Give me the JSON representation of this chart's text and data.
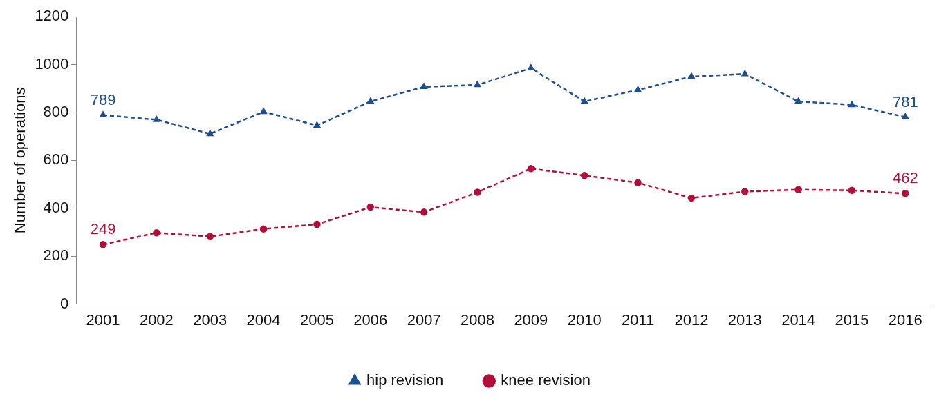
{
  "chart_data": {
    "type": "line",
    "ylabel": "Number of operations",
    "categories": [
      "2001",
      "2002",
      "2003",
      "2004",
      "2005",
      "2006",
      "2007",
      "2008",
      "2009",
      "2010",
      "2011",
      "2012",
      "2013",
      "2014",
      "2015",
      "2016"
    ],
    "series": [
      {
        "name": "hip revision",
        "color": "#1f4e8c",
        "marker": "triangle",
        "values": [
          789,
          770,
          711,
          803,
          746,
          846,
          907,
          915,
          985,
          846,
          894,
          950,
          961,
          846,
          832,
          781
        ],
        "value_labels": [
          "789",
          null,
          null,
          null,
          null,
          null,
          null,
          null,
          null,
          null,
          null,
          null,
          null,
          null,
          null,
          "781"
        ]
      },
      {
        "name": "knee revision",
        "color": "#b0103a",
        "marker": "circle",
        "values": [
          249,
          298,
          282,
          314,
          333,
          405,
          384,
          467,
          566,
          537,
          507,
          443,
          470,
          478,
          475,
          462
        ],
        "value_labels": [
          "249",
          null,
          null,
          null,
          null,
          null,
          null,
          null,
          null,
          null,
          null,
          null,
          null,
          null,
          null,
          "462"
        ]
      }
    ],
    "ylim": [
      0,
      1200
    ],
    "yticks": [
      0,
      200,
      400,
      600,
      800,
      1000,
      1200
    ],
    "grid": false,
    "legend": "bottom",
    "line_style": "dashed"
  }
}
